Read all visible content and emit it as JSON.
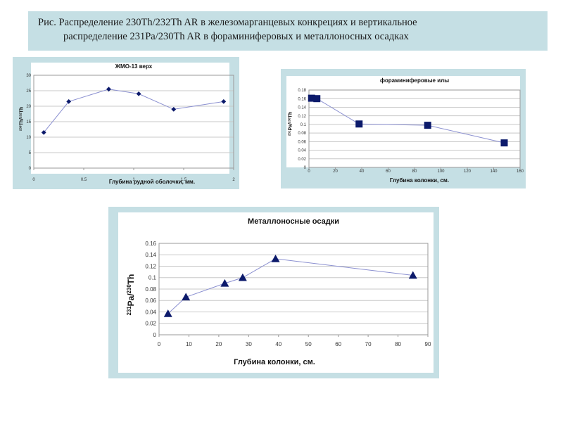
{
  "caption": {
    "line1": "Рис. Распределение 230Th/232Th AR в железомарганцевых конкрециях и вертикальное",
    "line2": "распределение 231Pa/230Th AR в фораминиферовых и металлоносных осадках"
  },
  "chart_data": [
    {
      "type": "line",
      "title": "ЖМО-13 верх",
      "xlabel": "Глубина рудной оболочки, мм.",
      "ylabel": "230Th/232Th",
      "xlim": [
        0,
        2
      ],
      "ylim": [
        0,
        30
      ],
      "x_ticks": [
        "0",
        "0.5",
        "1",
        "1.5",
        "2"
      ],
      "y_ticks": [
        "0",
        "5",
        "10",
        "15",
        "20",
        "25",
        "30"
      ],
      "marker": "diamond",
      "series": [
        {
          "x": [
            0.1,
            0.35,
            0.75,
            1.05,
            1.4,
            1.9
          ],
          "values": [
            11.5,
            21.5,
            25.5,
            24.0,
            19.0,
            21.5
          ]
        }
      ]
    },
    {
      "type": "line",
      "title": "фораминиферовые илы",
      "xlabel": "Глубина колонки, см.",
      "ylabel": "231Pa/230Th",
      "xlim": [
        0,
        160
      ],
      "ylim": [
        0,
        0.18
      ],
      "x_ticks": [
        "0",
        "20",
        "40",
        "60",
        "80",
        "100",
        "120",
        "140",
        "160"
      ],
      "y_ticks": [
        "0",
        "0.02",
        "0.04",
        "0.06",
        "0.08",
        "0.1",
        "0.12",
        "0.14",
        "0.16",
        "0.18"
      ],
      "marker": "square",
      "series": [
        {
          "x": [
            2,
            6,
            38,
            90,
            148
          ],
          "values": [
            0.161,
            0.16,
            0.101,
            0.098,
            0.057
          ]
        }
      ]
    },
    {
      "type": "line",
      "title": "Металлоносные осадки",
      "xlabel": "Глубина колонки, см.",
      "ylabel": "231Pa/230Th",
      "xlim": [
        0,
        90
      ],
      "ylim": [
        0,
        0.16
      ],
      "x_ticks": [
        "0",
        "10",
        "20",
        "30",
        "40",
        "50",
        "60",
        "70",
        "80",
        "90"
      ],
      "y_ticks": [
        "0",
        "0.02",
        "0.04",
        "0.06",
        "0.08",
        "0.1",
        "0.12",
        "0.14",
        "0.16"
      ],
      "marker": "triangle",
      "series": [
        {
          "x": [
            3,
            9,
            22,
            28,
            39,
            85
          ],
          "values": [
            0.037,
            0.066,
            0.09,
            0.1,
            0.133,
            0.104
          ]
        }
      ]
    }
  ]
}
